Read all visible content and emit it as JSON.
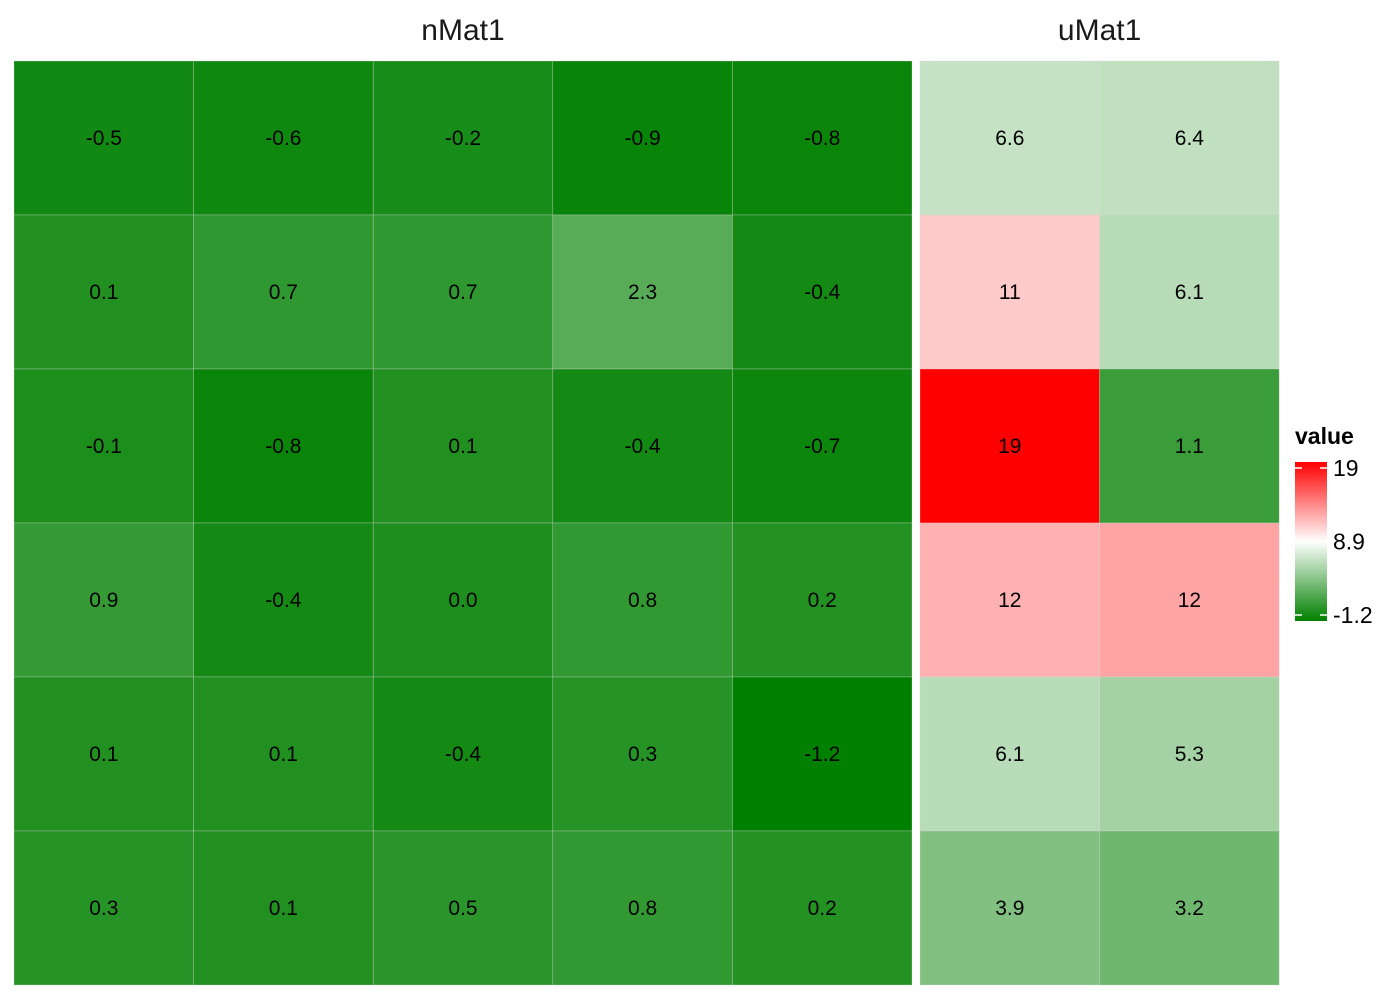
{
  "chart_data": {
    "type": "heatmap",
    "panels": [
      {
        "title": "nMat1",
        "values": [
          [
            -0.5,
            -0.6,
            -0.2,
            -0.9,
            -0.8
          ],
          [
            0.1,
            0.7,
            0.7,
            2.3,
            -0.4
          ],
          [
            -0.1,
            -0.8,
            0.1,
            -0.4,
            -0.7
          ],
          [
            0.9,
            -0.4,
            0.0,
            0.8,
            0.2
          ],
          [
            0.1,
            0.1,
            -0.4,
            0.3,
            -1.2
          ],
          [
            0.3,
            0.1,
            0.5,
            0.8,
            0.2
          ]
        ],
        "labels": [
          [
            "-0.5",
            "-0.6",
            "-0.2",
            "-0.9",
            "-0.8"
          ],
          [
            "0.1",
            "0.7",
            "0.7",
            "2.3",
            "-0.4"
          ],
          [
            "-0.1",
            "-0.8",
            "0.1",
            "-0.4",
            "-0.7"
          ],
          [
            "0.9",
            "-0.4",
            "0.0",
            "0.8",
            "0.2"
          ],
          [
            "0.1",
            "0.1",
            "-0.4",
            "0.3",
            "-1.2"
          ],
          [
            "0.3",
            "0.1",
            "0.5",
            "0.8",
            "0.2"
          ]
        ]
      },
      {
        "title": "uMat1",
        "values": [
          [
            6.6,
            6.4
          ],
          [
            11,
            6.1
          ],
          [
            19,
            1.1
          ],
          [
            12,
            12.5
          ],
          [
            6.1,
            5.3
          ],
          [
            3.9,
            3.2
          ]
        ],
        "labels": [
          [
            "6.6",
            "6.4"
          ],
          [
            "11",
            "6.1"
          ],
          [
            "19",
            "1.1"
          ],
          [
            "12",
            "12"
          ],
          [
            "6.1",
            "5.3"
          ],
          [
            "3.9",
            "3.2"
          ]
        ]
      }
    ],
    "legend": {
      "title": "value",
      "ticks": [
        "19",
        "8.9",
        "-1.2"
      ],
      "tick_values": [
        19,
        8.9,
        -1.2
      ],
      "placement": "right"
    },
    "scale": {
      "min": -1.2,
      "mid": 8.9,
      "max": 19,
      "low_color": "#008000",
      "mid_color": "#ffffff",
      "high_color": "#ff0000"
    },
    "grid_line_color": "#d9d9d9",
    "panel_gap_color": "#ffffff"
  }
}
